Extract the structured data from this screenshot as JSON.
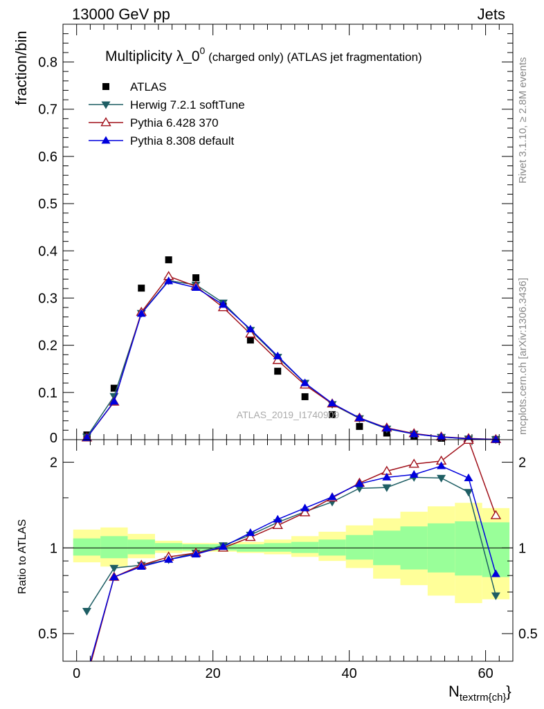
{
  "header": {
    "left": "13000 GeV pp",
    "right": "Jets"
  },
  "side_labels": {
    "rivet": "Rivet 3.1.10, ≥ 2.8M events",
    "mcplots": "mcplots.cern.ch [arXiv:1306.3436]"
  },
  "watermark": "ATLAS_2019_I1740909",
  "chart_data": [
    {
      "type": "scatter",
      "panel": "main",
      "title_main": "Multiplicity λ_0",
      "title_sup": "0",
      "title_sub": " (charged only) (ATLAS jet fragmentation)",
      "ylabel": "fraction/bin",
      "ylim": [
        0,
        0.88
      ],
      "yticks": [
        0.1,
        0.2,
        0.3,
        0.4,
        0.5,
        0.6,
        0.7,
        0.8
      ],
      "ytick_labels": [
        "0.1",
        "0.2",
        "0.3",
        "0.4",
        "0.5",
        "0.6",
        "0.7",
        "0.8"
      ],
      "ybase_label": "0",
      "xlim": [
        -2,
        64
      ],
      "x": [
        1.5,
        5.5,
        9.5,
        13.5,
        17.5,
        21.5,
        25.5,
        29.5,
        33.5,
        37.5,
        41.5,
        45.5,
        49.5,
        53.5,
        57.5,
        61.5
      ],
      "legend_position": "top-left",
      "series": [
        {
          "name": "ATLAS",
          "color": "#000000",
          "marker": "square",
          "values": [
            0.01,
            0.109,
            0.321,
            0.381,
            0.343,
            0.283,
            0.211,
            0.145,
            0.091,
            0.053,
            0.028,
            0.014,
            0.007,
            0.003,
            0.0011,
            0.0004
          ]
        },
        {
          "name": "Herwig 7.2.1 softTune",
          "color": "#1e5e64",
          "marker": "triangle-down",
          "values": [
            0.006,
            0.092,
            0.268,
            0.337,
            0.328,
            0.29,
            0.232,
            0.175,
            0.12,
            0.075,
            0.045,
            0.023,
            0.012,
            0.0055,
            0.0018,
            0.0003
          ]
        },
        {
          "name": "Pythia 6.428 370",
          "color": "#a0101a",
          "marker": "triangle-open",
          "values": [
            0.004,
            0.08,
            0.27,
            0.346,
            0.325,
            0.28,
            0.224,
            0.168,
            0.116,
            0.076,
            0.046,
            0.025,
            0.013,
            0.006,
            0.0025,
            0.0005
          ]
        },
        {
          "name": "Pythia 8.308 default",
          "color": "#0000dd",
          "marker": "triangle-up",
          "values": [
            0.004,
            0.081,
            0.267,
            0.336,
            0.322,
            0.286,
            0.234,
            0.177,
            0.12,
            0.077,
            0.046,
            0.024,
            0.012,
            0.0057,
            0.0019,
            0.0003
          ]
        }
      ]
    },
    {
      "type": "line",
      "panel": "ratio",
      "ylabel": "Ratio to ATLAS",
      "ylim": [
        0.4,
        2.4
      ],
      "log_scale": true,
      "yticks": [
        0.5,
        1,
        2
      ],
      "ytick_labels": [
        "0.5",
        "1",
        "2"
      ],
      "xlim": [
        -2,
        64
      ],
      "xticks": [
        0,
        20,
        40,
        60
      ],
      "xtick_labels": [
        "0",
        "20",
        "40",
        "60"
      ],
      "xlabel": "N",
      "xlabel_sub": "textrm{ch}",
      "reference_line": 1,
      "bins": [
        [
          -0.5,
          3.5
        ],
        [
          3.5,
          7.5
        ],
        [
          7.5,
          11.5
        ],
        [
          11.5,
          15.5
        ],
        [
          15.5,
          19.5
        ],
        [
          19.5,
          23.5
        ],
        [
          23.5,
          27.5
        ],
        [
          27.5,
          31.5
        ],
        [
          31.5,
          35.5
        ],
        [
          35.5,
          39.5
        ],
        [
          39.5,
          43.5
        ],
        [
          43.5,
          47.5
        ],
        [
          47.5,
          51.5
        ],
        [
          51.5,
          55.5
        ],
        [
          55.5,
          59.5
        ],
        [
          59.5,
          63.5
        ]
      ],
      "band_colors": {
        "total": "#ffff99",
        "stat": "#99ff99"
      },
      "band_total": [
        [
          0.89,
          1.16
        ],
        [
          0.86,
          1.18
        ],
        [
          0.92,
          1.12
        ],
        [
          0.96,
          1.06
        ],
        [
          0.97,
          1.04
        ],
        [
          0.97,
          1.04
        ],
        [
          0.96,
          1.05
        ],
        [
          0.95,
          1.07
        ],
        [
          0.93,
          1.1
        ],
        [
          0.9,
          1.14
        ],
        [
          0.85,
          1.2
        ],
        [
          0.78,
          1.27
        ],
        [
          0.74,
          1.34
        ],
        [
          0.68,
          1.4
        ],
        [
          0.64,
          1.44
        ],
        [
          0.66,
          1.38
        ]
      ],
      "band_stat": [
        [
          0.94,
          1.08
        ],
        [
          0.92,
          1.1
        ],
        [
          0.95,
          1.07
        ],
        [
          0.98,
          1.04
        ],
        [
          0.98,
          1.03
        ],
        [
          0.98,
          1.03
        ],
        [
          0.97,
          1.03
        ],
        [
          0.97,
          1.04
        ],
        [
          0.96,
          1.05
        ],
        [
          0.94,
          1.07
        ],
        [
          0.91,
          1.11
        ],
        [
          0.87,
          1.15
        ],
        [
          0.84,
          1.19
        ],
        [
          0.82,
          1.22
        ],
        [
          0.8,
          1.24
        ],
        [
          0.79,
          1.23
        ]
      ],
      "x": [
        1.5,
        5.5,
        9.5,
        13.5,
        17.5,
        21.5,
        25.5,
        29.5,
        33.5,
        37.5,
        41.5,
        45.5,
        49.5,
        53.5,
        57.5,
        61.5
      ],
      "series": [
        {
          "name": "Herwig 7.2.1 softTune",
          "color": "#1e5e64",
          "marker": "triangle-down",
          "values": [
            0.6,
            0.85,
            0.87,
            0.91,
            0.96,
            1.02,
            1.11,
            1.23,
            1.34,
            1.45,
            1.62,
            1.63,
            1.77,
            1.76,
            1.57,
            0.68
          ]
        },
        {
          "name": "Pythia 6.428 370",
          "color": "#a0101a",
          "marker": "triangle-open",
          "values": [
            0.35,
            0.79,
            0.87,
            0.93,
            0.96,
            1.0,
            1.09,
            1.2,
            1.33,
            1.5,
            1.69,
            1.86,
            1.97,
            2.02,
            2.39,
            1.3
          ]
        },
        {
          "name": "Pythia 8.308 default",
          "color": "#0000dd",
          "marker": "triangle-up",
          "values": [
            0.36,
            0.79,
            0.86,
            0.91,
            0.95,
            1.01,
            1.13,
            1.26,
            1.38,
            1.51,
            1.68,
            1.77,
            1.81,
            1.94,
            1.76,
            0.81
          ]
        }
      ]
    }
  ]
}
